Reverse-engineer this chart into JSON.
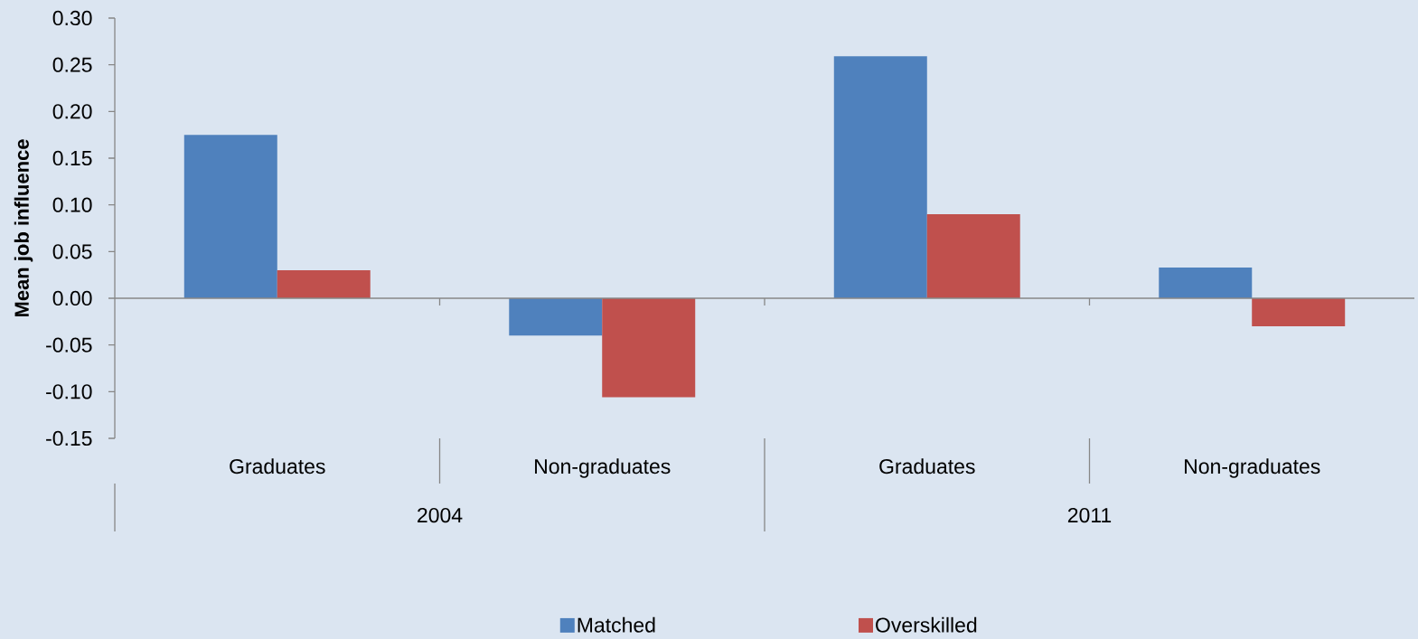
{
  "chart_data": {
    "type": "bar",
    "ylabel": "Mean job influence",
    "categories": [
      "Graduates",
      "Non-graduates",
      "Graduates",
      "Non-graduates"
    ],
    "series": [
      {
        "name": "Matched",
        "color": "#4f81bd",
        "values": [
          0.175,
          -0.04,
          0.259,
          0.033
        ]
      },
      {
        "name": "Overskilled",
        "color": "#c0504d",
        "values": [
          0.03,
          -0.106,
          0.09,
          -0.03
        ]
      }
    ],
    "ylim": [
      -0.15,
      0.3
    ],
    "yticks": [
      -0.15,
      {
        "value": -0.1,
        "label": "-0.10"
      },
      -0.05,
      {
        "value": 0,
        "label": "0.00"
      },
      0.05,
      {
        "value": 0.1,
        "label": "0.10"
      },
      0.15,
      {
        "value": 0.2,
        "label": "0.20"
      },
      0.25,
      {
        "value": 0.3,
        "label": "0.30"
      }
    ],
    "annotations": [
      "2004",
      "2011"
    ],
    "legend": "bottom"
  }
}
